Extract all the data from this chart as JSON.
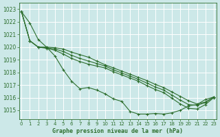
{
  "xlabel": "Graphe pression niveau de la mer (hPa)",
  "background_color": "#cce8e8",
  "grid_color": "#ffffff",
  "line_color": "#2d6e2d",
  "x_ticks": [
    0,
    1,
    2,
    3,
    4,
    5,
    6,
    7,
    8,
    9,
    10,
    11,
    12,
    13,
    14,
    15,
    16,
    17,
    18,
    19,
    20,
    21,
    22,
    23
  ],
  "ylim": [
    1014.3,
    1023.5
  ],
  "xlim": [
    -0.3,
    23.3
  ],
  "yticks": [
    1015,
    1016,
    1017,
    1018,
    1019,
    1020,
    1021,
    1022,
    1023
  ],
  "series": [
    [
      1022.8,
      1021.9,
      1020.6,
      1020.0,
      1019.3,
      1018.2,
      1017.3,
      1016.7,
      1016.8,
      1016.6,
      1016.3,
      1015.9,
      1015.7,
      1014.9,
      1014.7,
      1014.7,
      1014.75,
      1014.7,
      1014.8,
      1015.0,
      1015.35,
      1015.45,
      1015.85,
      1016.05
    ],
    [
      1022.8,
      1020.5,
      1020.0,
      1020.0,
      1019.95,
      1019.85,
      1019.6,
      1019.4,
      1019.2,
      1018.9,
      1018.6,
      1018.35,
      1018.1,
      1017.85,
      1017.6,
      1017.35,
      1017.05,
      1016.8,
      1016.45,
      1016.1,
      1015.75,
      1015.5,
      1015.65,
      1016.05
    ],
    [
      1022.8,
      1020.5,
      1020.0,
      1019.95,
      1019.85,
      1019.65,
      1019.35,
      1019.1,
      1018.9,
      1018.7,
      1018.5,
      1018.2,
      1017.95,
      1017.7,
      1017.45,
      1017.15,
      1016.85,
      1016.6,
      1016.2,
      1015.8,
      1015.45,
      1015.4,
      1015.6,
      1016.05
    ],
    [
      1022.8,
      1020.5,
      1020.0,
      1019.9,
      1019.75,
      1019.45,
      1019.1,
      1018.85,
      1018.65,
      1018.5,
      1018.35,
      1018.05,
      1017.8,
      1017.55,
      1017.3,
      1016.95,
      1016.65,
      1016.4,
      1015.95,
      1015.5,
      1015.15,
      1015.1,
      1015.45,
      1016.0
    ]
  ]
}
